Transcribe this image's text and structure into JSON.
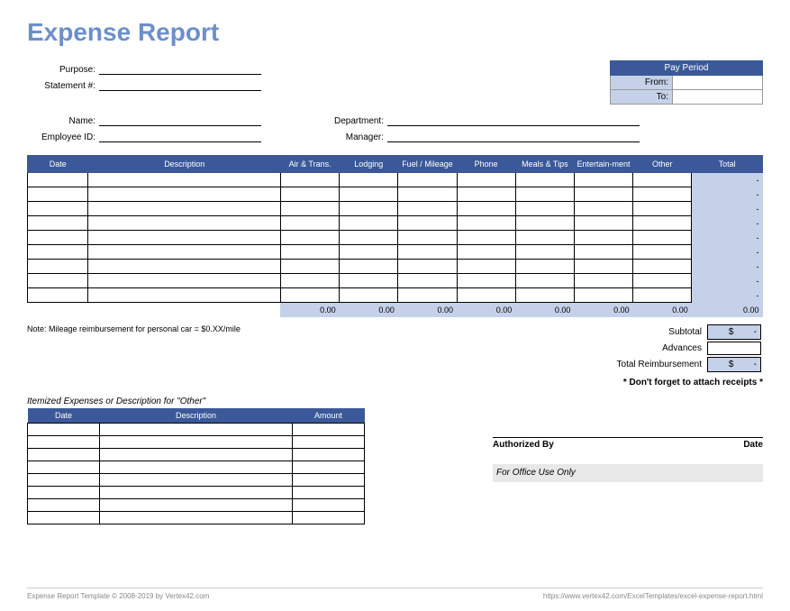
{
  "title": "Expense Report",
  "colors": {
    "header_blue": "#3b5998",
    "light_blue": "#c5d1e8",
    "title_blue": "#6d8fc9"
  },
  "fields": {
    "purpose_label": "Purpose:",
    "statement_label": "Statement #:",
    "name_label": "Name:",
    "employee_id_label": "Employee ID:",
    "department_label": "Department:",
    "manager_label": "Manager:"
  },
  "pay_period": {
    "header": "Pay Period",
    "from_label": "From:",
    "to_label": "To:",
    "from_value": "",
    "to_value": ""
  },
  "main_table": {
    "headers": [
      "Date",
      "Description",
      "Air & Trans.",
      "Lodging",
      "Fuel / Mileage",
      "Phone",
      "Meals & Tips",
      "Entertain-ment",
      "Other",
      "Total"
    ],
    "row_count": 9,
    "row_totals": [
      "-",
      "-",
      "-",
      "-",
      "-",
      "-",
      "-",
      "-",
      "-"
    ],
    "sums": [
      "0.00",
      "0.00",
      "0.00",
      "0.00",
      "0.00",
      "0.00",
      "0.00",
      "0.00"
    ]
  },
  "note": "Note: Mileage reimbursement for personal car = $0.XX/mile",
  "summary": {
    "subtotal_label": "Subtotal",
    "subtotal_currency": "$",
    "subtotal_value": "-",
    "advances_label": "Advances",
    "advances_value": "",
    "total_label": "Total Reimbursement",
    "total_currency": "$",
    "total_value": "-"
  },
  "receipts_note": "* Don't forget to attach receipts *",
  "itemized": {
    "title": "Itemized Expenses or Description for \"Other\"",
    "headers": [
      "Date",
      "Description",
      "Amount"
    ],
    "row_count": 8
  },
  "auth": {
    "authorized_by": "Authorized By",
    "date": "Date",
    "office_use": "For Office Use Only"
  },
  "footer": {
    "left": "Expense Report Template © 2008-2019 by Vertex42.com",
    "right": "https://www.vertex42.com/ExcelTemplates/excel-expense-report.html"
  }
}
